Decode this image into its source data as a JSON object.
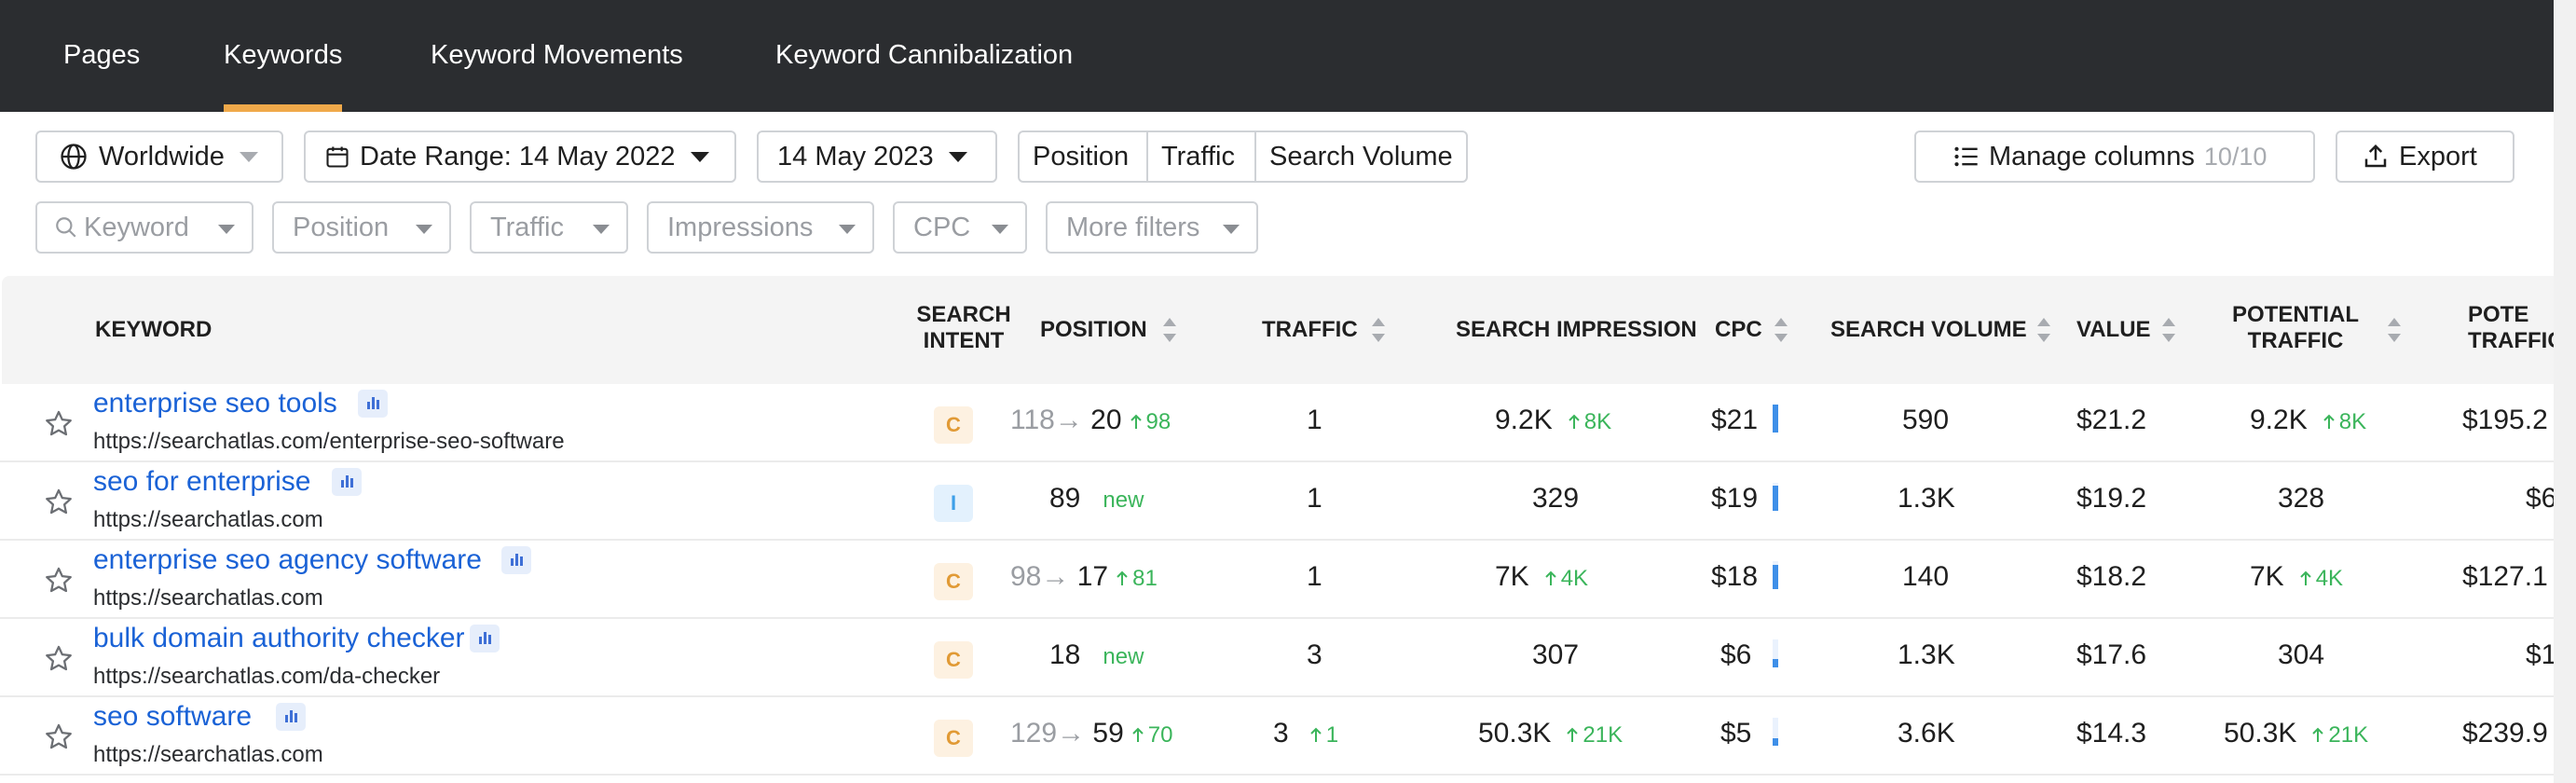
{
  "tabs": [
    {
      "label": "Pages"
    },
    {
      "label": "Keywords"
    },
    {
      "label": "Keyword Movements"
    },
    {
      "label": "Keyword Cannibalization"
    }
  ],
  "active_tab": "Keywords",
  "toolbar": {
    "location": "Worldwide",
    "date_range": "Date Range: 14 May 2022",
    "date_end": "14 May 2023",
    "segments": [
      "Position",
      "Traffic",
      "Search Volume"
    ],
    "manage_columns": "Manage columns",
    "manage_columns_count": "10/10",
    "export": "Export"
  },
  "filters": {
    "keyword_placeholder": "Keyword",
    "position": "Position",
    "traffic": "Traffic",
    "impressions": "Impressions",
    "cpc": "CPC",
    "more": "More filters"
  },
  "columns": {
    "keyword": "KEYWORD",
    "intent_1": "SEARCH",
    "intent_2": "INTENT",
    "position": "POSITION",
    "traffic": "TRAFFIC",
    "impression": "SEARCH IMPRESSION",
    "cpc": "CPC",
    "volume": "SEARCH VOLUME",
    "value": "VALUE",
    "pot_traffic_1": "POTENTIAL",
    "pot_traffic_2": "TRAFFIC",
    "pot_value_1": "POTE",
    "pot_value_2": "TRAFFIC"
  },
  "rows": [
    {
      "keyword": "enterprise seo tools",
      "url": "https://searchatlas.com/enterprise-seo-software",
      "intent": "C",
      "prev_position": "118",
      "position": "20",
      "position_change": "98",
      "traffic": "1",
      "traffic_change": "",
      "impression": "9.2K",
      "impression_change": "8K",
      "cpc": "$21",
      "cpc_level": 1.0,
      "volume": "590",
      "value": "$21.2",
      "pot_traffic": "9.2K",
      "pot_traffic_change": "8K",
      "pot_value": "$195.2"
    },
    {
      "keyword": "seo for enterprise",
      "url": "https://searchatlas.com",
      "intent": "I",
      "prev_position": "",
      "position": "89",
      "position_change": "new",
      "traffic": "1",
      "traffic_change": "",
      "impression": "329",
      "impression_change": "",
      "cpc": "$19",
      "cpc_level": 0.9,
      "volume": "1.3K",
      "value": "$19.2",
      "pot_traffic": "328",
      "pot_traffic_change": "",
      "pot_value": "$6"
    },
    {
      "keyword": "enterprise seo agency software",
      "url": "https://searchatlas.com",
      "intent": "C",
      "prev_position": "98",
      "position": "17",
      "position_change": "81",
      "traffic": "1",
      "traffic_change": "",
      "impression": "7K",
      "impression_change": "4K",
      "cpc": "$18",
      "cpc_level": 0.85,
      "volume": "140",
      "value": "$18.2",
      "pot_traffic": "7K",
      "pot_traffic_change": "4K",
      "pot_value": "$127.1"
    },
    {
      "keyword": "bulk domain authority checker",
      "url": "https://searchatlas.com/da-checker",
      "intent": "C",
      "prev_position": "",
      "position": "18",
      "position_change": "new",
      "traffic": "3",
      "traffic_change": "",
      "impression": "307",
      "impression_change": "",
      "cpc": "$6",
      "cpc_level": 0.3,
      "volume": "1.3K",
      "value": "$17.6",
      "pot_traffic": "304",
      "pot_traffic_change": "",
      "pot_value": "$1"
    },
    {
      "keyword": "seo software",
      "url": "https://searchatlas.com",
      "intent": "C",
      "prev_position": "129",
      "position": "59",
      "position_change": "70",
      "traffic": "3",
      "traffic_change": "1",
      "impression": "50.3K",
      "impression_change": "21K",
      "cpc": "$5",
      "cpc_level": 0.25,
      "volume": "3.6K",
      "value": "$14.3",
      "pot_traffic": "50.3K",
      "pot_traffic_change": "21K",
      "pot_value": "$239.9"
    }
  ],
  "colors": {
    "accent": "#f0a94a",
    "link": "#1a62d6",
    "positive": "#3bb55b",
    "nav_bg": "#2b2d30"
  }
}
